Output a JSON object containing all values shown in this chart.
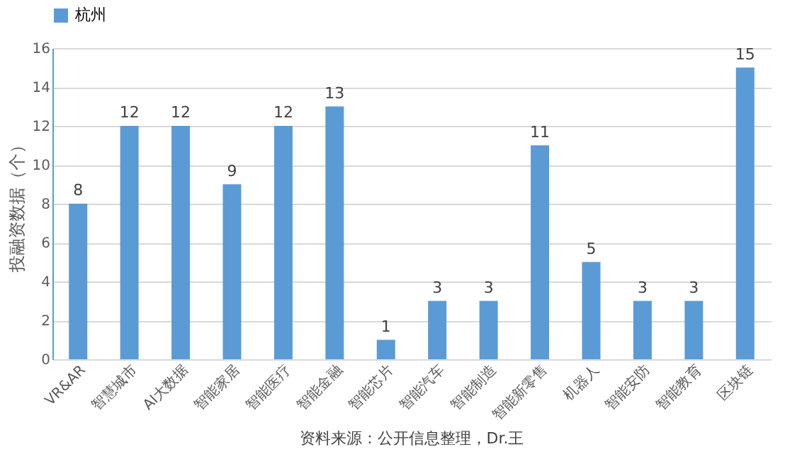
{
  "chart_data": {
    "type": "bar",
    "categories": [
      "VR&AR",
      "智慧城市",
      "AI大数据",
      "智能家居",
      "智能医疗",
      "智能金融",
      "智能芯片",
      "智能汽车",
      "智能制造",
      "智能新零售",
      "机器人",
      "智能安防",
      "智能教育",
      "区块链"
    ],
    "series": [
      {
        "name": "杭州",
        "color": "#5b9bd5",
        "values": [
          8,
          12,
          12,
          9,
          12,
          13,
          1,
          3,
          3,
          11,
          5,
          3,
          3,
          15
        ]
      }
    ],
    "ylabel": "投融资数据（个）",
    "ylim": [
      0,
      16
    ],
    "yticks": [
      0,
      2,
      4,
      6,
      8,
      10,
      12,
      14,
      16
    ],
    "grid": "y",
    "legend": "top",
    "data_labels": true,
    "annotations": [
      "资料来源：公开信息整理，Dr.王"
    ]
  }
}
